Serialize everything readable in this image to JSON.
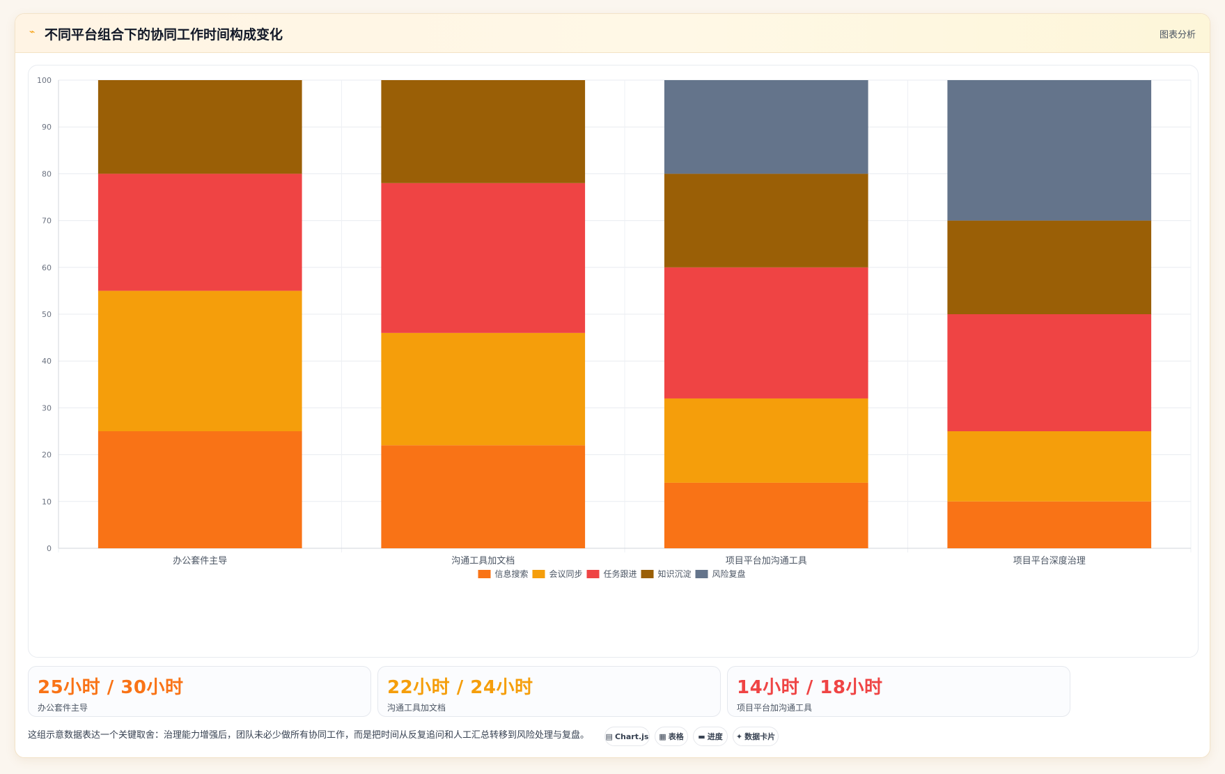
{
  "header": {
    "icon": "chart-line-icon",
    "title": "不同平台组合下的协同工作时间构成变化",
    "action_label": "图表分析"
  },
  "chart_data": {
    "type": "bar",
    "stacked": true,
    "categories": [
      "办公套件主导",
      "沟通工具加文档",
      "项目平台加沟通工具",
      "项目平台深度治理"
    ],
    "ylim": [
      0,
      100
    ],
    "yticks": [
      0,
      10,
      20,
      30,
      40,
      50,
      60,
      70,
      80,
      90,
      100
    ],
    "grid": true,
    "legend_position": "bottom",
    "series": [
      {
        "name": "信息搜索",
        "color": "#f97316",
        "values": [
          25,
          22,
          14,
          10
        ]
      },
      {
        "name": "会议同步",
        "color": "#f59e0b",
        "values": [
          30,
          24,
          18,
          15
        ]
      },
      {
        "name": "任务跟进",
        "color": "#ef4444",
        "values": [
          25,
          32,
          28,
          25
        ]
      },
      {
        "name": "知识沉淀",
        "color": "#9a5f06",
        "values": [
          20,
          22,
          20,
          20
        ]
      },
      {
        "name": "风险复盘",
        "color": "#64748b",
        "values": [
          0,
          0,
          20,
          30
        ]
      }
    ]
  },
  "stats": [
    {
      "value": "25小时 / 30小时",
      "label": "办公套件主导",
      "color": "#f97316"
    },
    {
      "value": "22小时 / 24小时",
      "label": "沟通工具加文档",
      "color": "#f59e0b"
    },
    {
      "value": "14小时 / 18小时",
      "label": "项目平台加沟通工具",
      "color": "#ef4444"
    }
  ],
  "footer": {
    "note": "这组示意数据表达一个关键取舍：治理能力增强后，团队未必少做所有协同工作，而是把时间从反复追问和人工汇总转移到风险处理与复盘。",
    "pills": [
      {
        "icon": "▤",
        "label": "Chart.js"
      },
      {
        "icon": "▦",
        "label": "表格"
      },
      {
        "icon": "▬",
        "label": "进度"
      },
      {
        "icon": "✦",
        "label": "数据卡片"
      }
    ]
  }
}
